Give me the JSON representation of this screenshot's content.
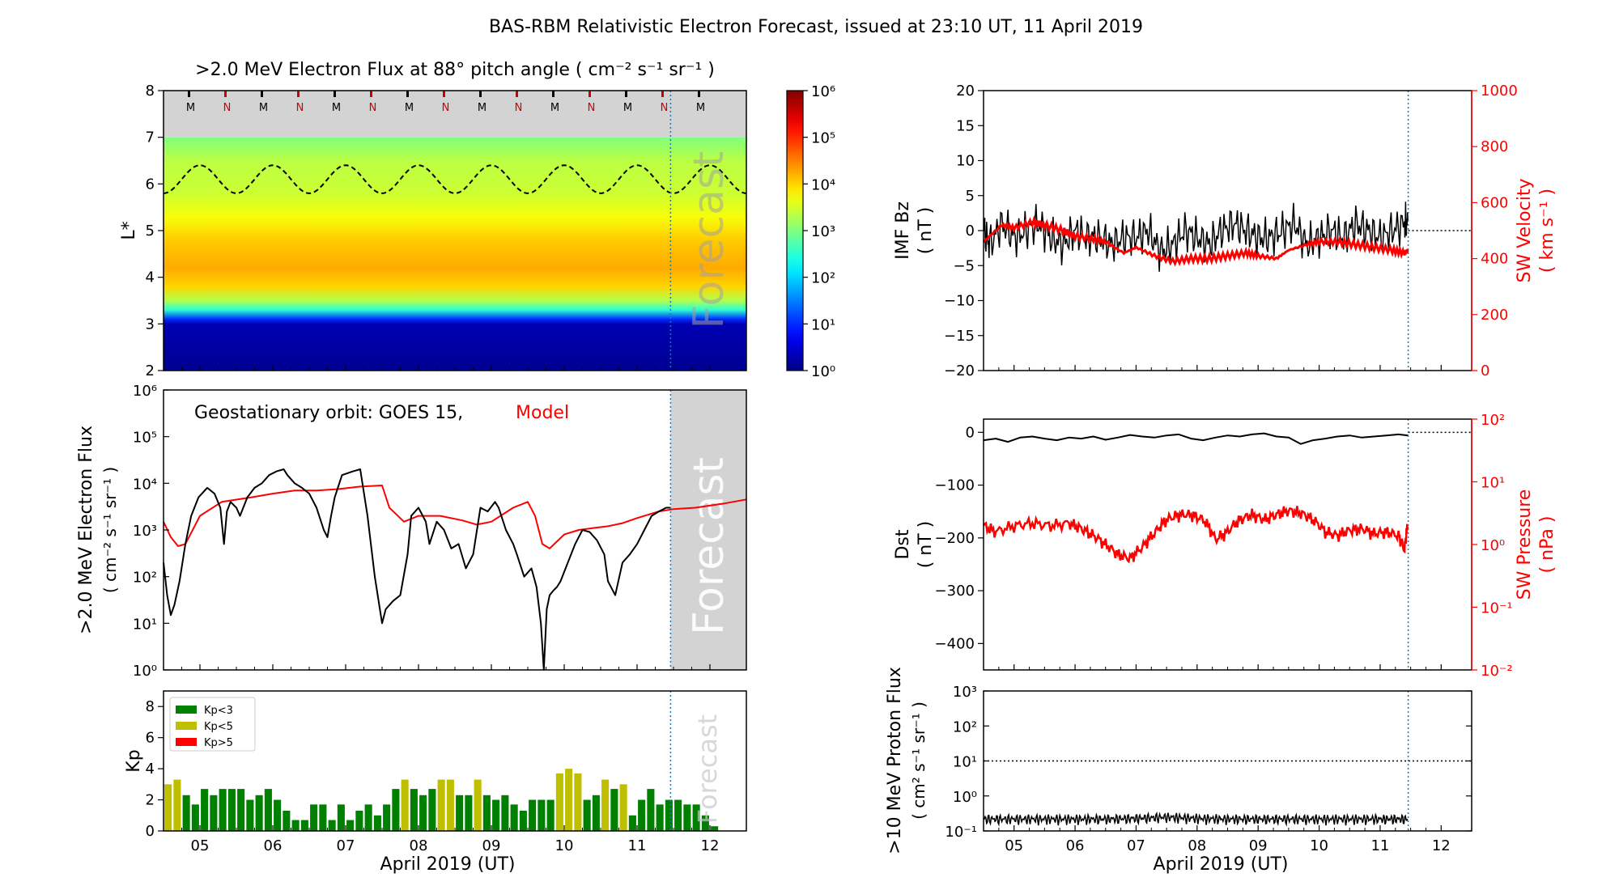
{
  "figure_title": "BAS-RBM Relativistic Electron Forecast, issued at 23:10 UT, 11 April 2019",
  "x_axis_label": "April 2019 (UT)",
  "day_ticks": [
    "05",
    "06",
    "07",
    "08",
    "09",
    "10",
    "11",
    "12"
  ],
  "forecast_label": "Forecast",
  "colors": {
    "obs": "#000000",
    "model": "#ff0000",
    "forecast_fill": "#d3d3d3",
    "now_line": "#1f77b4",
    "kp_low": "#008000",
    "kp_mid": "#bfbf00",
    "kp_high": "#ff0000"
  },
  "chart_data": [
    {
      "id": "lstar_flux_map",
      "type": "heatmap",
      "title": ">2.0 MeV Electron Flux at 88° pitch angle ( cm⁻² s⁻¹ sr⁻¹ )",
      "ylabel": "L*",
      "x_range_days": [
        4.5,
        12.5
      ],
      "ylim": [
        2,
        8
      ],
      "y_ticks": [
        "2",
        "3",
        "4",
        "5",
        "6",
        "7",
        "8"
      ],
      "colorbar": {
        "scale": "log",
        "range": [
          1,
          1000000
        ],
        "tick_labels": [
          "10⁰",
          "10¹",
          "10²",
          "10³",
          "10⁴",
          "10⁵",
          "10⁶"
        ]
      },
      "orbit_markers": {
        "labels": [
          "M",
          "N",
          "M",
          "N",
          "M",
          "N",
          "M",
          "N",
          "M",
          "N",
          "M",
          "N",
          "M",
          "N",
          "M"
        ],
        "start_day": 4.85,
        "spacing_day": 0.5
      },
      "log_flux_profile": {
        "L": [
          2.0,
          3.0,
          3.1,
          3.3,
          3.5,
          3.8,
          4.2,
          4.8,
          5.3,
          5.8,
          6.5,
          7.0
        ],
        "log10_flux": [
          0.1,
          0.3,
          1.0,
          2.5,
          3.3,
          4.0,
          4.25,
          4.05,
          3.7,
          3.45,
          3.35,
          3.0
        ]
      },
      "geo_orbit_L": {
        "mean": 6.1,
        "amplitude": 0.3,
        "period_days": 1.0
      },
      "forecast_start_day": 11.46
    },
    {
      "id": "geo_flux",
      "type": "line",
      "title": "Geostationary orbit:   GOES 15,",
      "title_model": "Model",
      "ylabel": ">2.0 MeV Electron Flux",
      "ylabel_units": "( cm⁻² s⁻¹ sr⁻¹ )",
      "yscale": "log",
      "ylim": [
        1,
        1000000
      ],
      "y_ticks": [
        "10⁰",
        "10¹",
        "10²",
        "10³",
        "10⁴",
        "10⁵",
        "10⁶"
      ],
      "series": [
        {
          "name": "GOES 15",
          "x": [
            4.5,
            4.55,
            4.6,
            4.65,
            4.72,
            4.8,
            4.88,
            4.98,
            5.1,
            5.2,
            5.28,
            5.33,
            5.37,
            5.42,
            5.5,
            5.55,
            5.65,
            5.75,
            5.85,
            5.95,
            6.05,
            6.15,
            6.2,
            6.3,
            6.4,
            6.5,
            6.6,
            6.7,
            6.75,
            6.8,
            6.85,
            6.95,
            7.1,
            7.2,
            7.3,
            7.4,
            7.5,
            7.55,
            7.65,
            7.75,
            7.85,
            7.9,
            8.0,
            8.1,
            8.15,
            8.25,
            8.35,
            8.45,
            8.55,
            8.65,
            8.75,
            8.85,
            8.95,
            9.05,
            9.1,
            9.2,
            9.3,
            9.35,
            9.45,
            9.55,
            9.62,
            9.68,
            9.72,
            9.76,
            9.8,
            9.85,
            9.9,
            9.95,
            10.05,
            10.15,
            10.25,
            10.35,
            10.45,
            10.55,
            10.6,
            10.7,
            10.8,
            10.9,
            11.0,
            11.1,
            11.2,
            11.3,
            11.4,
            11.46
          ],
          "y": [
            200,
            40,
            15,
            25,
            80,
            500,
            2000,
            5000,
            8000,
            6000,
            3000,
            500,
            2500,
            4000,
            3000,
            2000,
            5000,
            8000,
            10000,
            15000,
            18000,
            20000,
            15000,
            10000,
            8000,
            6000,
            3000,
            1000,
            700,
            2000,
            5000,
            15000,
            18000,
            20000,
            2000,
            100,
            10,
            20,
            30,
            40,
            300,
            2000,
            3000,
            1500,
            500,
            1500,
            1000,
            400,
            500,
            150,
            300,
            3000,
            2500,
            4000,
            3000,
            1000,
            500,
            300,
            100,
            150,
            60,
            10,
            1,
            20,
            40,
            50,
            60,
            80,
            200,
            500,
            1000,
            900,
            600,
            300,
            80,
            40,
            200,
            300,
            500,
            1000,
            2000,
            2500,
            3000,
            3000
          ]
        },
        {
          "name": "Model",
          "x": [
            4.5,
            4.6,
            4.7,
            4.8,
            5.0,
            5.3,
            5.7,
            6.0,
            6.3,
            6.6,
            6.9,
            7.2,
            7.5,
            7.6,
            7.8,
            8.0,
            8.3,
            8.6,
            8.8,
            9.0,
            9.3,
            9.5,
            9.6,
            9.7,
            9.8,
            10.0,
            10.2,
            10.4,
            10.6,
            10.8,
            11.0,
            11.3,
            11.5,
            11.8,
            12.2,
            12.5
          ],
          "y": [
            1500,
            700,
            450,
            500,
            2000,
            4000,
            5000,
            6000,
            7000,
            7000,
            7500,
            8500,
            9000,
            3000,
            1500,
            2000,
            2000,
            1600,
            1300,
            1500,
            3000,
            4000,
            2000,
            500,
            400,
            800,
            1000,
            1100,
            1200,
            1400,
            1800,
            2500,
            2800,
            3000,
            3700,
            4500
          ]
        }
      ],
      "forecast_start_day": 11.46
    },
    {
      "id": "kp",
      "type": "bar",
      "ylabel": "Kp",
      "ylim": [
        0,
        9
      ],
      "y_ticks": [
        "0",
        "2",
        "4",
        "6",
        "8"
      ],
      "legend": [
        {
          "label": "Kp<3",
          "color": "#008000"
        },
        {
          "label": "Kp<5",
          "color": "#bfbf00"
        },
        {
          "label": "Kp>5",
          "color": "#ff0000"
        }
      ],
      "legend_position": "top-left",
      "bin_width_days": 0.125,
      "start_day": 4.5,
      "values": [
        3.0,
        3.3,
        2.3,
        1.7,
        2.7,
        2.3,
        2.7,
        2.7,
        2.7,
        2.0,
        2.3,
        2.7,
        2.0,
        1.3,
        0.7,
        0.7,
        1.7,
        1.7,
        0.7,
        1.7,
        0.7,
        1.3,
        1.7,
        1.0,
        1.7,
        2.7,
        3.3,
        2.7,
        2.3,
        2.7,
        3.3,
        3.3,
        2.3,
        2.3,
        3.3,
        2.3,
        2.0,
        2.3,
        1.7,
        1.3,
        2.0,
        2.0,
        2.0,
        3.7,
        4.0,
        3.7,
        2.0,
        2.3,
        3.3,
        2.7,
        3.0,
        1.0,
        2.0,
        2.7,
        1.7,
        2.0,
        2.0,
        1.7,
        1.7,
        1.0,
        0.3
      ],
      "forecast_start_day": 11.46
    },
    {
      "id": "imf_sw_velocity",
      "type": "line",
      "ylabel_left": "IMF Bz",
      "ylabel_left_units": "( nT )",
      "ylim_left": [
        -20,
        20
      ],
      "left_ticks": [
        "−20",
        "−15",
        "−10",
        "−5",
        "0",
        "5",
        "10",
        "15",
        "20"
      ],
      "ylabel_right": "SW Velocity",
      "ylabel_right_units": "( km s⁻¹ )",
      "ylim_right": [
        0,
        1000
      ],
      "right_ticks": [
        "0",
        "200",
        "400",
        "600",
        "800",
        "1000"
      ],
      "series": [
        {
          "name": "IMF Bz",
          "axis": "left",
          "x": [
            4.5,
            4.6,
            4.8,
            5.0,
            5.2,
            5.4,
            5.6,
            5.8,
            6.0,
            6.2,
            6.4,
            6.6,
            6.8,
            7.0,
            7.2,
            7.4,
            7.6,
            7.8,
            8.0,
            8.2,
            8.4,
            8.6,
            8.8,
            9.0,
            9.2,
            9.4,
            9.6,
            9.8,
            10.0,
            10.2,
            10.4,
            10.6,
            10.8,
            11.0,
            11.2,
            11.4,
            11.46
          ],
          "y": [
            0,
            -2,
            1,
            -1,
            0,
            1,
            -1,
            -2,
            0,
            -1,
            -1,
            -2,
            -1,
            -1,
            0,
            -3,
            -2,
            0,
            -1,
            -2,
            0,
            1,
            0,
            -1,
            -1,
            0,
            1,
            -2,
            -1,
            0,
            -1,
            1,
            0,
            -1,
            0,
            1,
            1
          ]
        },
        {
          "name": "SW Velocity",
          "axis": "right",
          "x": [
            4.5,
            4.8,
            5.0,
            5.3,
            5.5,
            5.8,
            6.0,
            6.3,
            6.5,
            6.8,
            7.0,
            7.3,
            7.6,
            7.9,
            8.2,
            8.5,
            8.8,
            9.0,
            9.3,
            9.5,
            9.8,
            10.0,
            10.3,
            10.6,
            10.9,
            11.2,
            11.4,
            11.46
          ],
          "y": [
            460,
            520,
            510,
            530,
            520,
            500,
            480,
            470,
            460,
            420,
            440,
            410,
            390,
            400,
            400,
            410,
            420,
            410,
            400,
            430,
            450,
            460,
            460,
            450,
            440,
            430,
            420,
            430
          ]
        }
      ],
      "reference_line_value": 0,
      "forecast_start_day": 11.46
    },
    {
      "id": "dst_sw_pressure",
      "type": "line",
      "ylabel_left": "Dst",
      "ylabel_left_units": "( nT )",
      "ylim_left": [
        -450,
        25
      ],
      "left_ticks": [
        "−400",
        "−300",
        "−200",
        "−100",
        "0"
      ],
      "ylabel_right": "SW Pressure",
      "ylabel_right_units": "( nPa )",
      "yscale_right": "log",
      "ylim_right": [
        0.01,
        100
      ],
      "right_ticks": [
        "10⁻²",
        "10⁻¹",
        "10⁰",
        "10¹",
        "10²"
      ],
      "series": [
        {
          "name": "Dst",
          "axis": "left",
          "x": [
            4.5,
            4.7,
            4.9,
            5.1,
            5.3,
            5.5,
            5.7,
            5.9,
            6.1,
            6.3,
            6.5,
            6.7,
            6.9,
            7.1,
            7.3,
            7.5,
            7.7,
            7.9,
            8.1,
            8.3,
            8.5,
            8.7,
            8.9,
            9.1,
            9.3,
            9.5,
            9.7,
            9.9,
            10.1,
            10.3,
            10.5,
            10.7,
            10.9,
            11.1,
            11.3,
            11.46
          ],
          "y": [
            -15,
            -12,
            -18,
            -10,
            -8,
            -12,
            -15,
            -10,
            -12,
            -8,
            -14,
            -10,
            -5,
            -8,
            -10,
            -6,
            -4,
            -12,
            -15,
            -10,
            -6,
            -8,
            -4,
            -2,
            -8,
            -10,
            -22,
            -15,
            -12,
            -8,
            -6,
            -10,
            -8,
            -6,
            -4,
            -6
          ]
        },
        {
          "name": "SW Pressure",
          "axis": "right",
          "x": [
            4.5,
            4.7,
            5.0,
            5.3,
            5.6,
            5.9,
            6.1,
            6.3,
            6.5,
            6.7,
            6.9,
            7.1,
            7.3,
            7.5,
            7.7,
            7.9,
            8.1,
            8.3,
            8.5,
            8.7,
            8.9,
            9.1,
            9.3,
            9.5,
            9.7,
            9.9,
            10.1,
            10.3,
            10.5,
            10.7,
            10.9,
            11.1,
            11.3,
            11.4,
            11.46
          ],
          "y": [
            2.0,
            1.6,
            2.0,
            2.2,
            2.0,
            2.2,
            1.8,
            1.4,
            1.0,
            0.7,
            0.6,
            0.9,
            1.5,
            2.5,
            3.0,
            3.0,
            2.5,
            1.2,
            1.6,
            2.5,
            3.0,
            2.5,
            3.0,
            3.5,
            3.2,
            2.5,
            1.6,
            1.4,
            1.7,
            1.8,
            1.5,
            1.6,
            1.4,
            0.8,
            2.2
          ]
        }
      ],
      "reference_line_value": 0,
      "forecast_start_day": 11.46
    },
    {
      "id": "proton_flux",
      "type": "line",
      "ylabel": ">10 MeV Proton Flux",
      "ylabel_units": "( cm² s⁻¹ sr⁻¹ )",
      "yscale": "log",
      "ylim": [
        0.1,
        1000
      ],
      "y_ticks": [
        "10⁻¹",
        "10⁰",
        "10¹",
        "10²",
        "10³"
      ],
      "series": [
        {
          "name": ">10 MeV Proton Flux",
          "x": [
            4.5,
            5.0,
            5.5,
            6.0,
            6.5,
            7.0,
            7.5,
            8.0,
            8.5,
            9.0,
            9.5,
            10.0,
            10.5,
            11.0,
            11.46
          ],
          "y": [
            0.22,
            0.22,
            0.22,
            0.22,
            0.22,
            0.23,
            0.25,
            0.23,
            0.22,
            0.22,
            0.22,
            0.22,
            0.22,
            0.22,
            0.22
          ]
        }
      ],
      "reference_line_value": 10,
      "forecast_start_day": 11.46
    }
  ]
}
